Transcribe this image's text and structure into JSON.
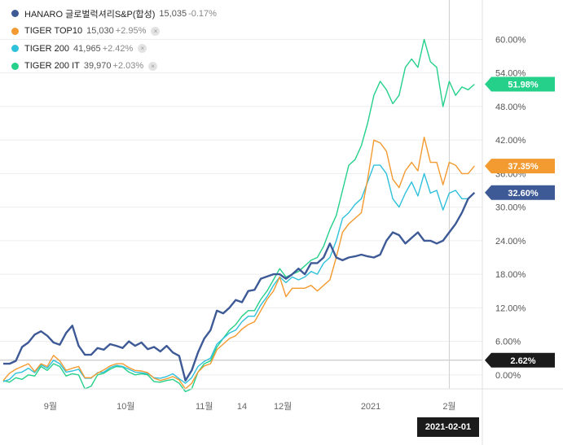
{
  "legend": [
    {
      "name": "HANARO 글로벌럭셔리S&P(합성)",
      "price": "15,035",
      "change": "-0.17%",
      "color": "#3e5a96",
      "closable": false
    },
    {
      "name": "TIGER TOP10",
      "price": "15,030",
      "change": "+2.95%",
      "color": "#f39a30",
      "closable": true
    },
    {
      "name": "TIGER 200",
      "price": "41,965",
      "change": "+2.42%",
      "color": "#2fc0dc",
      "closable": true
    },
    {
      "name": "TIGER 200 IT",
      "price": "39,970",
      "change": "+2.03%",
      "color": "#25d08b",
      "closable": true
    }
  ],
  "close_icon": "×",
  "crosshair_date": "2021-02-01",
  "chart_data": {
    "type": "line",
    "y_unit": "%",
    "ylim": [
      -2.5,
      60.5
    ],
    "y_ticks": [
      "0.00%",
      "6.00%",
      "12.00%",
      "18.00%",
      "24.00%",
      "30.00%",
      "36.00%",
      "42.00%",
      "48.00%",
      "54.00%",
      "60.00%"
    ],
    "y_tick_values": [
      0,
      6,
      12,
      18,
      24,
      30,
      36,
      42,
      48,
      54,
      60
    ],
    "x_ticks": [
      "9월",
      "10월",
      "11월",
      "14",
      "12월",
      "2021",
      "2월"
    ],
    "x_tick_pos": [
      7.5,
      19.5,
      32,
      38,
      44.5,
      58.5,
      71
    ],
    "x_range": [
      0,
      76
    ],
    "crosshair_index": 71,
    "baseline": 2.62,
    "end_labels": [
      {
        "series": 3,
        "value": 51.98,
        "label": "51.98%"
      },
      {
        "series": 1,
        "value": 37.35,
        "label": "37.35%"
      },
      {
        "series": 0,
        "value": 32.6,
        "label": "32.60%"
      },
      {
        "label": "2.62%",
        "value": 2.62
      }
    ],
    "series": [
      {
        "name": "HANARO 글로벌럭셔리S&P(합성)",
        "color": "#3e5a96",
        "width": 2.4,
        "values": [
          2.0,
          2.0,
          2.5,
          5.0,
          5.8,
          7.2,
          7.8,
          7.0,
          5.8,
          5.4,
          7.5,
          8.8,
          5.2,
          3.6,
          3.6,
          4.8,
          4.5,
          5.5,
          5.2,
          4.8,
          6.0,
          5.2,
          5.8,
          4.6,
          5.0,
          4.2,
          5.2,
          4.0,
          3.4,
          -1.0,
          0.8,
          4.0,
          6.5,
          8.0,
          11.5,
          11.0,
          12.0,
          13.4,
          13.0,
          15.0,
          15.2,
          17.2,
          17.6,
          18.0,
          18.0,
          17.2,
          18.0,
          19.0,
          18.0,
          20.0,
          20.0,
          21.0,
          23.5,
          21.0,
          20.5,
          21.0,
          21.2,
          21.5,
          21.2,
          21.0,
          21.5,
          24.0,
          25.5,
          25.0,
          23.5,
          24.5,
          25.5,
          24.0,
          24.0,
          23.5,
          24.0,
          25.5,
          27.0,
          29.0,
          31.5,
          32.6
        ]
      },
      {
        "name": "TIGER TOP10",
        "color": "#f39a30",
        "width": 1.4,
        "values": [
          -1.0,
          0.3,
          1.0,
          1.5,
          2.0,
          0.6,
          2.0,
          1.5,
          3.5,
          2.5,
          0.8,
          1.2,
          1.5,
          -0.5,
          -0.5,
          0.3,
          0.9,
          1.6,
          2.0,
          2.0,
          1.3,
          0.8,
          0.7,
          0.4,
          -0.6,
          -1.0,
          -0.7,
          -0.3,
          -0.9,
          -2.5,
          -1.5,
          0.5,
          1.6,
          2.0,
          4.5,
          5.5,
          6.5,
          7.0,
          8.2,
          9.0,
          9.5,
          11.5,
          13.5,
          15.0,
          17.5,
          14.0,
          15.5,
          15.5,
          15.5,
          16.0,
          15.0,
          16.0,
          17.0,
          21.0,
          25.5,
          27.0,
          28.0,
          29.0,
          35.0,
          42.0,
          41.5,
          40.0,
          35.0,
          33.5,
          36.5,
          38.0,
          36.5,
          42.5,
          38.0,
          38.0,
          34.0,
          38.0,
          37.5,
          36.0,
          36.0,
          37.35
        ]
      },
      {
        "name": "TIGER 200",
        "color": "#2fc0dc",
        "width": 1.4,
        "values": [
          -1.2,
          -0.8,
          0.3,
          0.5,
          1.2,
          0.4,
          1.8,
          1.2,
          2.6,
          2.0,
          0.5,
          0.7,
          1.0,
          -0.6,
          -0.6,
          0.4,
          0.5,
          1.3,
          1.7,
          1.5,
          1.0,
          0.5,
          0.4,
          0.2,
          -0.5,
          -0.6,
          -0.3,
          0.2,
          -0.7,
          -1.5,
          -0.5,
          1.5,
          2.4,
          3.0,
          5.5,
          6.5,
          7.5,
          8.0,
          9.5,
          10.5,
          10.5,
          12.5,
          14.0,
          16.0,
          17.5,
          16.5,
          17.5,
          17.0,
          17.5,
          18.5,
          18.0,
          20.0,
          21.0,
          24.0,
          28.0,
          29.0,
          30.5,
          31.5,
          34.5,
          37.5,
          37.5,
          36.0,
          31.5,
          30.0,
          32.5,
          34.5,
          32.0,
          36.0,
          32.5,
          33.0,
          29.5,
          32.5,
          33.0,
          31.5,
          31.5,
          32.5
        ]
      },
      {
        "name": "TIGER 200 IT",
        "color": "#25d08b",
        "width": 1.4,
        "values": [
          -1.0,
          -1.3,
          -0.5,
          -0.8,
          0.0,
          -0.2,
          1.5,
          0.8,
          2.0,
          1.5,
          -0.2,
          0.2,
          0.0,
          -2.5,
          -2.0,
          0.0,
          0.3,
          1.0,
          1.5,
          1.4,
          0.5,
          0.0,
          0.2,
          0.0,
          -1.2,
          -1.3,
          -1.0,
          -0.8,
          -1.5,
          -3.0,
          -2.5,
          0.5,
          2.0,
          2.5,
          5.0,
          6.5,
          8.0,
          9.0,
          10.5,
          11.5,
          11.5,
          13.5,
          15.0,
          17.0,
          19.0,
          17.5,
          18.0,
          18.5,
          19.5,
          20.5,
          21.0,
          23.0,
          26.0,
          28.5,
          33.0,
          37.5,
          38.5,
          41.0,
          45.0,
          50.0,
          52.5,
          51.0,
          48.5,
          50.0,
          55.0,
          56.5,
          55.0,
          60.0,
          56.0,
          55.0,
          48.0,
          52.5,
          50.0,
          51.5,
          51.0,
          51.98
        ]
      }
    ]
  }
}
